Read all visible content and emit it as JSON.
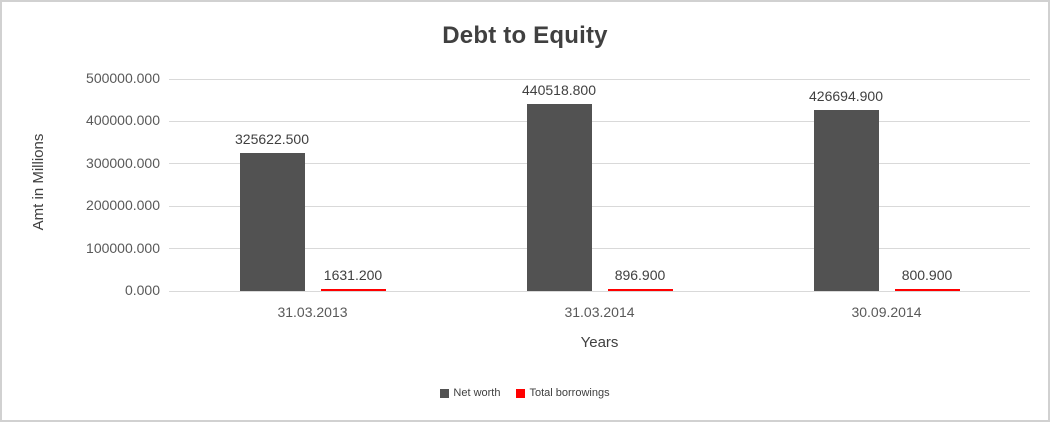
{
  "chart": {
    "title": "Debt to Equity",
    "y_axis_title": "Amt in Millions",
    "x_axis_title": "Years"
  },
  "chart_data": {
    "type": "bar",
    "title": "Debt to Equity",
    "xlabel": "Years",
    "ylabel": "Amt in Millions",
    "categories": [
      "31.03.2013",
      "31.03.2014",
      "30.09.2014"
    ],
    "series": [
      {
        "name": "Net worth",
        "color": "#525252",
        "values": [
          325622.5,
          440518.8,
          426694.9
        ],
        "labels": [
          "325622.500",
          "440518.800",
          "426694.900"
        ]
      },
      {
        "name": "Total borrowings",
        "color": "#ff0000",
        "values": [
          1631.2,
          896.9,
          800.9
        ],
        "labels": [
          "1631.200",
          "896.900",
          "800.900"
        ]
      }
    ],
    "ylim": [
      0,
      500000
    ],
    "y_ticks": [
      0,
      100000,
      200000,
      300000,
      400000,
      500000
    ],
    "y_tick_labels": [
      "0.000",
      "100000.000",
      "200000.000",
      "300000.000",
      "400000.000",
      "500000.000"
    ],
    "grid": true,
    "legend_position": "bottom",
    "gridline_color": "#d9d9d9",
    "label_color": "#404040",
    "axis_text_color": "#595959"
  }
}
